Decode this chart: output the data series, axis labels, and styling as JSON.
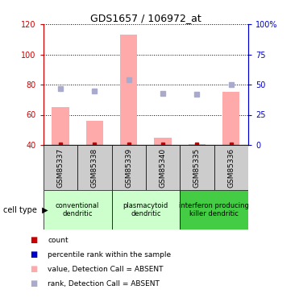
{
  "title": "GDS1657 / 106972_at",
  "samples": [
    "GSM85337",
    "GSM85338",
    "GSM85339",
    "GSM85340",
    "GSM85335",
    "GSM85336"
  ],
  "pink_bar_values": [
    65,
    56,
    113,
    45,
    40.5,
    75
  ],
  "blue_square_right_values": [
    47,
    45,
    54,
    43,
    42,
    50
  ],
  "red_square_values": [
    40.3,
    40.3,
    40.3,
    40.3,
    40.3,
    40.3
  ],
  "ylim_left": [
    40,
    120
  ],
  "ylim_right": [
    0,
    100
  ],
  "yticks_left": [
    40,
    60,
    80,
    100,
    120
  ],
  "yticks_right": [
    0,
    25,
    50,
    75,
    100
  ],
  "sample_box_color": "#cccccc",
  "pink_bar_color": "#ffaaaa",
  "blue_square_color": "#aaaacc",
  "red_square_color": "#cc0000",
  "left_axis_color": "#cc0000",
  "right_axis_color": "#0000cc",
  "group_color_12": "#ccffcc",
  "group_color_3": "#44cc44",
  "figsize": [
    3.71,
    3.75
  ],
  "dpi": 100
}
